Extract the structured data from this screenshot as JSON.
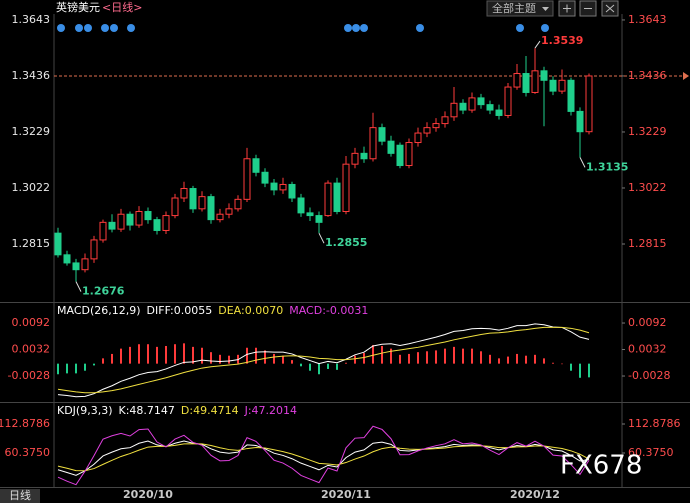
{
  "ui": {
    "theme_button": "全部主题",
    "period_tab": "日线",
    "watermark": "FX678"
  },
  "chart_data": [
    {
      "type": "candlestick",
      "title": "英镑美元",
      "subtitle": "<日线>",
      "up_color": "#ff3b3b",
      "down_color": "#1fcf8c",
      "categories": [
        null,
        null,
        null,
        null,
        null,
        null,
        null,
        null,
        null,
        null,
        "2020/10",
        null,
        null,
        null,
        null,
        null,
        null,
        null,
        null,
        null,
        null,
        null,
        null,
        null,
        null,
        null,
        null,
        null,
        null,
        null,
        null,
        null,
        "2020/11",
        null,
        null,
        null,
        null,
        null,
        null,
        null,
        null,
        null,
        null,
        null,
        null,
        null,
        null,
        null,
        null,
        null,
        null,
        null,
        null,
        "2020/12",
        null,
        null,
        null,
        null,
        null,
        null
      ],
      "open": [
        1.2855,
        1.2775,
        1.2745,
        1.272,
        1.276,
        1.283,
        1.2895,
        1.287,
        1.2925,
        1.2885,
        1.2935,
        1.2905,
        1.2865,
        1.292,
        1.2985,
        1.302,
        1.2945,
        1.299,
        1.2905,
        1.2925,
        1.2945,
        1.298,
        1.313,
        1.308,
        1.304,
        1.3015,
        1.3035,
        1.2985,
        1.293,
        1.292,
        1.292,
        1.304,
        1.2935,
        1.311,
        1.315,
        1.313,
        1.3245,
        1.3195,
        1.318,
        1.3105,
        1.319,
        1.3225,
        1.3245,
        1.326,
        1.3285,
        1.3335,
        1.331,
        1.3355,
        1.333,
        1.331,
        1.329,
        1.3395,
        1.3445,
        1.3375,
        1.3455,
        1.342,
        1.338,
        1.342,
        1.3305,
        1.323
      ],
      "high": [
        1.2875,
        1.279,
        1.276,
        1.278,
        1.2845,
        1.2905,
        1.2925,
        1.2945,
        1.2935,
        1.2955,
        1.295,
        1.2915,
        1.2935,
        1.3,
        1.3045,
        1.303,
        1.301,
        1.3,
        1.2945,
        1.2965,
        1.2995,
        1.317,
        1.3145,
        1.3095,
        1.3055,
        1.306,
        1.3045,
        1.3,
        1.295,
        1.2935,
        1.305,
        1.306,
        1.314,
        1.317,
        1.3175,
        1.33,
        1.326,
        1.3215,
        1.319,
        1.3205,
        1.3245,
        1.3265,
        1.328,
        1.3305,
        1.3395,
        1.335,
        1.3375,
        1.337,
        1.3345,
        1.333,
        1.341,
        1.348,
        1.351,
        1.3539,
        1.347,
        1.3435,
        1.346,
        1.343,
        1.332,
        1.3445
      ],
      "low": [
        1.2765,
        1.2735,
        1.2676,
        1.271,
        1.2745,
        1.282,
        1.2858,
        1.286,
        1.2865,
        1.2875,
        1.289,
        1.285,
        1.2852,
        1.291,
        1.297,
        1.293,
        1.2935,
        1.289,
        1.2895,
        1.291,
        1.2935,
        1.297,
        1.3065,
        1.3025,
        1.2995,
        1.3,
        1.297,
        1.2915,
        1.29,
        1.2855,
        1.2915,
        1.2925,
        1.2925,
        1.3095,
        1.3115,
        1.312,
        1.318,
        1.3138,
        1.3095,
        1.3095,
        1.3175,
        1.321,
        1.323,
        1.3245,
        1.327,
        1.3295,
        1.33,
        1.3315,
        1.3295,
        1.3275,
        1.328,
        1.3385,
        1.336,
        1.337,
        1.325,
        1.3365,
        1.337,
        1.329,
        1.3135,
        1.322
      ],
      "close": [
        1.2775,
        1.2745,
        1.272,
        1.276,
        1.283,
        1.2895,
        1.287,
        1.2925,
        1.2885,
        1.2935,
        1.2905,
        1.2865,
        1.292,
        1.2985,
        1.302,
        1.2945,
        1.299,
        1.2905,
        1.2925,
        1.2945,
        1.298,
        1.313,
        1.308,
        1.304,
        1.3015,
        1.3035,
        1.2985,
        1.293,
        1.292,
        1.2895,
        1.304,
        1.2935,
        1.311,
        1.315,
        1.313,
        1.3245,
        1.3195,
        1.315,
        1.3105,
        1.319,
        1.3225,
        1.3245,
        1.326,
        1.3285,
        1.3335,
        1.331,
        1.3355,
        1.333,
        1.331,
        1.329,
        1.3395,
        1.3445,
        1.3375,
        1.3455,
        1.342,
        1.338,
        1.342,
        1.3305,
        1.323,
        1.3436
      ],
      "annotations": [
        1.3539,
        1.2855,
        1.2676,
        1.3135
      ],
      "ylim": [
        1.2608,
        1.3665
      ],
      "yticks": [
        1.3643,
        1.3436,
        1.3229,
        1.3022,
        1.2815
      ]
    },
    {
      "type": "macd",
      "legend": [
        "MACD(26,12,9)",
        "DIFF:0.0055",
        "DEA:0.0070",
        "MACD:-0.0031"
      ],
      "ylim": [
        -0.00823,
        0.01328
      ],
      "yticks": [
        0.0092,
        0.0032,
        -0.0028
      ],
      "series": [
        {
          "style": "line",
          "color": "#ffffff",
          "values": [
            -0.007,
            -0.0072,
            -0.0075,
            -0.0074,
            -0.0068,
            -0.0058,
            -0.005,
            -0.004,
            -0.0033,
            -0.0025,
            -0.002,
            -0.0018,
            -0.0012,
            -0.0004,
            0.0003,
            0.0004,
            0.0008,
            0.0006,
            0.0005,
            0.0006,
            0.0009,
            0.0021,
            0.0026,
            0.0027,
            0.0026,
            0.0026,
            0.0022,
            0.0014,
            0.0007,
            0.0,
            0.0005,
            0.0002,
            0.001,
            0.002,
            0.0026,
            0.004,
            0.0044,
            0.0045,
            0.0041,
            0.0045,
            0.005,
            0.0055,
            0.006,
            0.0066,
            0.0073,
            0.0075,
            0.0079,
            0.008,
            0.0079,
            0.0076,
            0.008,
            0.0086,
            0.0086,
            0.009,
            0.0088,
            0.0083,
            0.0082,
            0.0072,
            0.006,
            0.0055
          ]
        },
        {
          "style": "line",
          "color": "#f0e040",
          "values": [
            -0.0058,
            -0.0061,
            -0.0064,
            -0.0066,
            -0.0066,
            -0.0064,
            -0.0061,
            -0.0057,
            -0.0052,
            -0.0047,
            -0.0042,
            -0.0037,
            -0.0032,
            -0.0026,
            -0.002,
            -0.0015,
            -0.001,
            -0.0007,
            -0.0005,
            -0.0003,
            -0.0001,
            0.0003,
            0.0008,
            0.0012,
            0.0015,
            0.0017,
            0.0018,
            0.0017,
            0.0015,
            0.0012,
            0.0011,
            0.0009,
            0.0009,
            0.0011,
            0.0014,
            0.0019,
            0.0024,
            0.0028,
            0.0031,
            0.0034,
            0.0037,
            0.0041,
            0.0045,
            0.0049,
            0.0054,
            0.0058,
            0.0062,
            0.0066,
            0.0069,
            0.007,
            0.0072,
            0.0075,
            0.0077,
            0.008,
            0.0082,
            0.0082,
            0.0082,
            0.008,
            0.0076,
            0.007
          ]
        },
        {
          "style": "bar",
          "color": "#e040e0",
          "up_color": "#ff3b3b",
          "down_color": "#1fcf8c",
          "values": [
            -0.0024,
            -0.0022,
            -0.0022,
            -0.0016,
            -0.0004,
            0.0012,
            0.0022,
            0.0034,
            0.0038,
            0.0044,
            0.0044,
            0.0038,
            0.004,
            0.0044,
            0.0046,
            0.0038,
            0.0036,
            0.0026,
            0.002,
            0.0018,
            0.002,
            0.0036,
            0.0036,
            0.003,
            0.0022,
            0.0018,
            0.0008,
            -0.0006,
            -0.0016,
            -0.0024,
            -0.0012,
            -0.0014,
            0.0002,
            0.0018,
            0.0024,
            0.0042,
            0.004,
            0.0034,
            0.002,
            0.0022,
            0.0026,
            0.0028,
            0.003,
            0.0034,
            0.0038,
            0.0034,
            0.0034,
            0.0028,
            0.002,
            0.0012,
            0.0016,
            0.0022,
            0.0018,
            0.002,
            0.0012,
            0.0002,
            0,
            -0.0016,
            -0.0032,
            -0.0031
          ]
        }
      ]
    },
    {
      "type": "kdj",
      "legend": [
        "KDJ(9,3,3)",
        "K:48.7147",
        "D:49.4714",
        "J:47.2014"
      ],
      "ylim": [
        -1.18,
        147.28
      ],
      "yticks": [
        112.8786,
        {
          "value": 60.375,
          "label": "60.3750"
        }
      ],
      "series": [
        {
          "style": "line",
          "color": "#ffffff",
          "values": [
            30,
            25,
            20,
            28,
            40,
            55,
            62,
            68,
            70,
            78,
            82,
            75,
            72,
            78,
            82,
            78,
            76,
            68,
            62,
            60,
            62,
            75,
            74,
            68,
            60,
            56,
            50,
            42,
            36,
            30,
            38,
            35,
            52,
            62,
            66,
            78,
            80,
            76,
            65,
            64,
            66,
            68,
            70,
            72,
            76,
            74,
            75,
            74,
            70,
            66,
            70,
            74,
            72,
            76,
            73,
            66,
            64,
            56,
            46,
            48.7147
          ]
        },
        {
          "style": "line",
          "color": "#f0e040",
          "values": [
            36.7,
            32.8,
            28.5,
            28.3,
            32.2,
            39.8,
            47.2,
            54.1,
            59.4,
            65.6,
            71.1,
            72.4,
            72.3,
            74.2,
            76.8,
            77.2,
            76.8,
            73.9,
            69.9,
            66.6,
            65.1,
            68.4,
            70.3,
            69.5,
            66.3,
            62.9,
            58.6,
            53.1,
            47.4,
            41.6,
            40.4,
            38.6,
            43.1,
            49.4,
            54.9,
            62.6,
            68.4,
            70.9,
            68.9,
            67.3,
            66.9,
            67.3,
            68.2,
            69.5,
            71.7,
            72.5,
            73.3,
            73.5,
            72.3,
            70.2,
            70.1,
            71.4,
            71.6,
            73.1,
            73.1,
            70.7,
            68.5,
            64.3,
            58.2,
            49.4714
          ]
        },
        {
          "style": "line",
          "color": "#e040e0",
          "values": [
            16.6,
            9.4,
            3,
            27.4,
            55.6,
            85.4,
            91.6,
            95.8,
            91.2,
            102.8,
            103.8,
            80.2,
            71.4,
            85.6,
            92.4,
            79.6,
            74.4,
            56.2,
            46.2,
            46.8,
            55.8,
            88.2,
            81.4,
            65,
            47.4,
            42.2,
            32.8,
            19.8,
            13.2,
            6.8,
            33.2,
            27.8,
            69.8,
            87.2,
            88.2,
            108.8,
            103.2,
            86.2,
            57.2,
            57.4,
            64.2,
            69.4,
            73.6,
            77,
            84.6,
            77,
            78.4,
            75,
            65.4,
            57.6,
            69.8,
            79.2,
            72.8,
            81.8,
            72.8,
            56.6,
            55,
            39.4,
            21.6,
            47.2014
          ]
        }
      ]
    }
  ]
}
